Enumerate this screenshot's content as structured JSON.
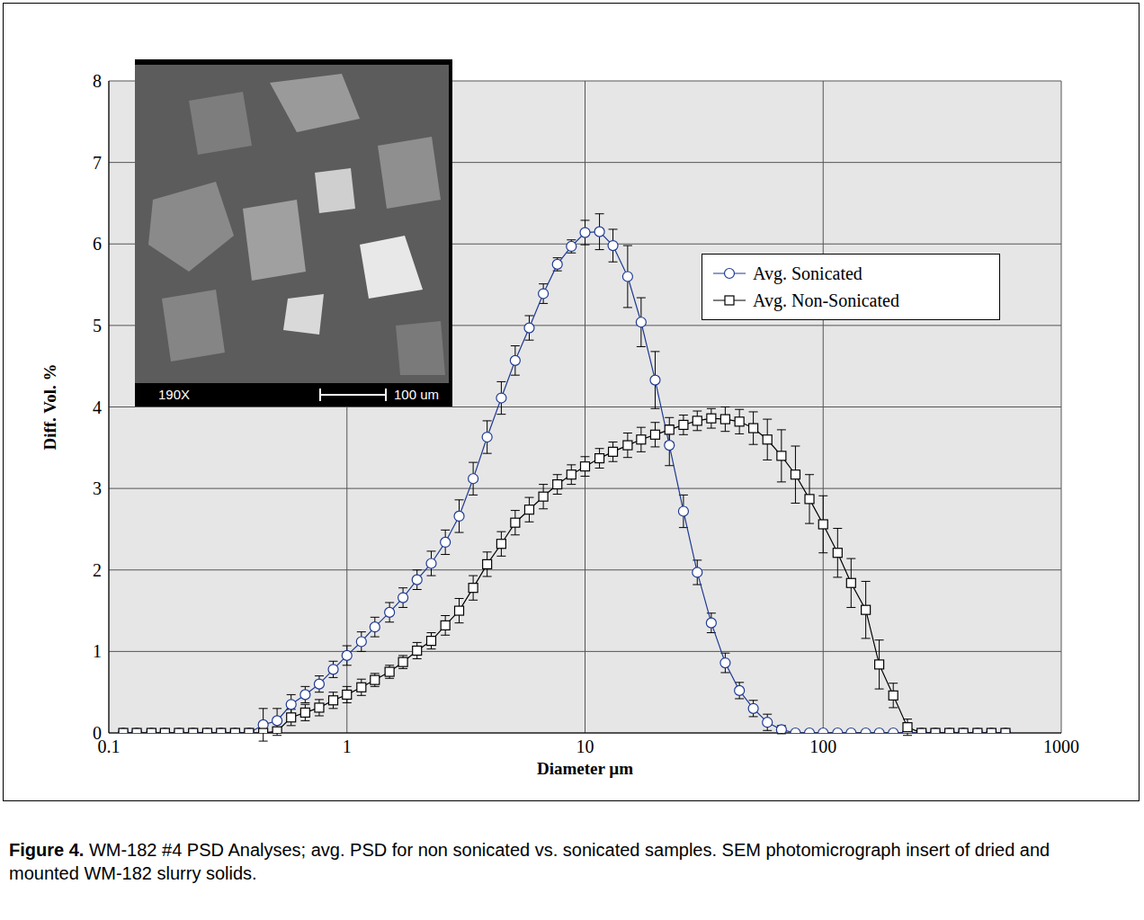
{
  "chart_data": {
    "type": "line",
    "x_label": "Diameter µm",
    "y_label": "Diff. Vol. %",
    "log": "x",
    "grid": true,
    "legend": "upper right",
    "xlim": [
      0.1,
      1000
    ],
    "xticks": [
      0.1,
      1,
      10,
      100,
      1000
    ],
    "ylim": [
      0,
      8
    ],
    "yticks": [
      0,
      1,
      2,
      3,
      4,
      5,
      6,
      7,
      8
    ],
    "x": [
      0.115,
      0.131,
      0.151,
      0.172,
      0.197,
      0.226,
      0.259,
      0.296,
      0.339,
      0.388,
      0.445,
      0.509,
      0.583,
      0.668,
      0.765,
      0.876,
      1.0,
      1.15,
      1.31,
      1.51,
      1.72,
      1.97,
      2.26,
      2.59,
      2.96,
      3.39,
      3.88,
      4.45,
      5.09,
      5.83,
      6.68,
      7.65,
      8.76,
      10.0,
      11.5,
      13.1,
      15.1,
      17.2,
      19.7,
      22.6,
      25.9,
      29.6,
      33.9,
      38.8,
      44.5,
      50.9,
      58.3,
      66.8,
      76.5,
      87.6,
      100,
      115,
      131,
      151,
      172,
      197,
      226,
      259,
      296,
      339,
      388,
      445,
      509,
      583
    ],
    "series": [
      {
        "name": "Avg. Sonicated",
        "color": "#1f3a93",
        "marker": "circle",
        "line_style": "solid",
        "values": [
          0,
          0,
          0,
          0,
          0,
          0,
          0,
          0,
          0,
          0,
          0.1,
          0.15,
          0.35,
          0.47,
          0.6,
          0.78,
          0.95,
          1.12,
          1.3,
          1.48,
          1.66,
          1.88,
          2.08,
          2.34,
          2.66,
          3.12,
          3.63,
          4.11,
          4.57,
          4.97,
          5.39,
          5.75,
          5.97,
          6.14,
          6.15,
          5.98,
          5.6,
          5.04,
          4.33,
          3.53,
          2.72,
          1.97,
          1.35,
          0.86,
          0.52,
          0.3,
          0.13,
          0.04,
          0,
          0,
          0,
          0,
          0,
          0,
          0,
          0,
          0,
          0,
          0,
          0,
          0,
          0,
          0,
          0
        ],
        "errors": [
          0,
          0,
          0,
          0,
          0,
          0,
          0,
          0,
          0,
          0,
          0.2,
          0.15,
          0.12,
          0.1,
          0.1,
          0.1,
          0.12,
          0.12,
          0.12,
          0.12,
          0.12,
          0.12,
          0.15,
          0.15,
          0.2,
          0.2,
          0.2,
          0.2,
          0.18,
          0.15,
          0.12,
          0.08,
          0.08,
          0.15,
          0.22,
          0.2,
          0.38,
          0.3,
          0.35,
          0.25,
          0.2,
          0.15,
          0.12,
          0.12,
          0.1,
          0.1,
          0.1,
          0.05,
          0,
          0,
          0,
          0,
          0,
          0,
          0,
          0,
          0,
          0,
          0,
          0,
          0,
          0,
          0,
          0
        ]
      },
      {
        "name": "Avg. Non-Sonicated",
        "color": "#000000",
        "marker": "square",
        "line_style": "solid",
        "values": [
          0,
          0,
          0,
          0,
          0,
          0,
          0,
          0,
          0,
          0,
          0,
          0.02,
          0.19,
          0.25,
          0.31,
          0.4,
          0.47,
          0.56,
          0.65,
          0.75,
          0.87,
          1.01,
          1.13,
          1.32,
          1.5,
          1.78,
          2.07,
          2.32,
          2.58,
          2.74,
          2.9,
          3.05,
          3.17,
          3.27,
          3.37,
          3.45,
          3.53,
          3.6,
          3.66,
          3.72,
          3.78,
          3.83,
          3.86,
          3.85,
          3.82,
          3.74,
          3.6,
          3.4,
          3.17,
          2.87,
          2.56,
          2.21,
          1.84,
          1.51,
          0.84,
          0.46,
          0.07,
          0,
          0,
          0,
          0,
          0,
          0,
          0
        ],
        "errors": [
          0,
          0,
          0,
          0,
          0,
          0,
          0,
          0,
          0,
          0,
          0,
          0.05,
          0.1,
          0.1,
          0.1,
          0.1,
          0.1,
          0.1,
          0.08,
          0.08,
          0.08,
          0.1,
          0.1,
          0.12,
          0.15,
          0.15,
          0.15,
          0.15,
          0.15,
          0.15,
          0.15,
          0.12,
          0.12,
          0.12,
          0.12,
          0.12,
          0.15,
          0.15,
          0.15,
          0.15,
          0.12,
          0.12,
          0.12,
          0.15,
          0.15,
          0.2,
          0.25,
          0.32,
          0.35,
          0.3,
          0.35,
          0.3,
          0.3,
          0.35,
          0.3,
          0.15,
          0.1,
          0,
          0,
          0,
          0,
          0,
          0,
          0
        ]
      }
    ]
  },
  "inset": {
    "magnification": "190X",
    "scale_bar": "100 um"
  },
  "caption": {
    "label": "Figure 4.",
    "text": "WM-182 #4 PSD Analyses; avg. PSD for non sonicated vs. sonicated samples.  SEM photomicrograph insert of dried and mounted WM-182 slurry solids."
  }
}
